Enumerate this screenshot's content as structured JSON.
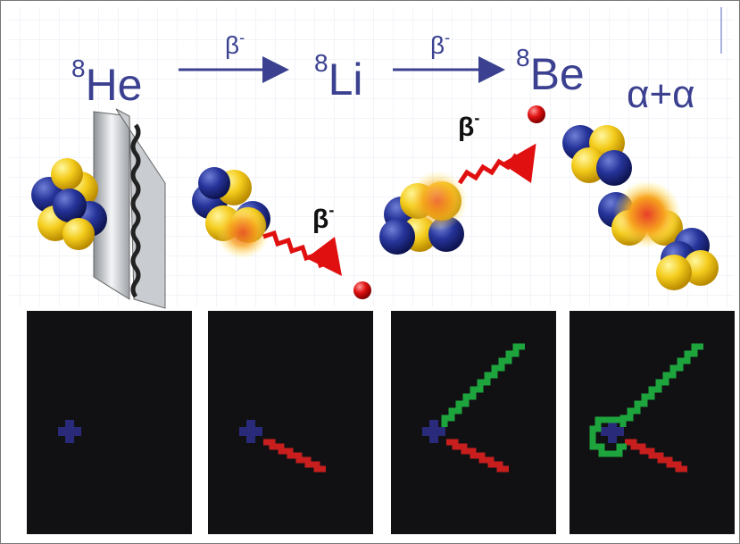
{
  "reaction": {
    "nuclei": [
      {
        "mass": "8",
        "symbol": "He"
      },
      {
        "mass": "8",
        "symbol": "Li"
      },
      {
        "mass": "8",
        "symbol": "Be"
      }
    ],
    "arrows": [
      {
        "label": "β",
        "charge": "-"
      },
      {
        "label": "β",
        "charge": "-"
      }
    ],
    "products": "α+α",
    "emissions": [
      {
        "label": "β",
        "charge": "-"
      },
      {
        "label": "β",
        "charge": "-"
      }
    ]
  }
}
